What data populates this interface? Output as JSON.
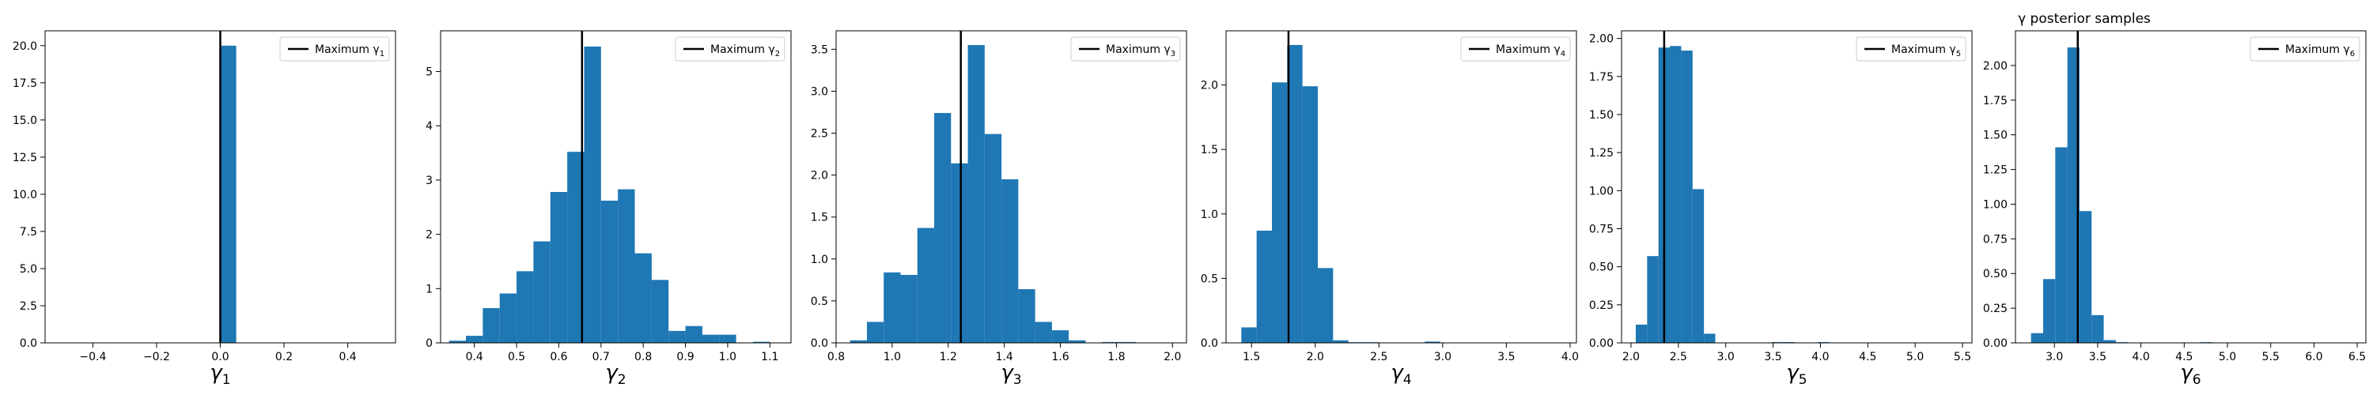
{
  "figure_title": "γ posterior samples",
  "chart_data": [
    {
      "type": "histogram",
      "symbol": "γ",
      "index": "1",
      "legend_text": "Maximum γ",
      "legend_placement": "upper-right",
      "max_line": 0.0,
      "xlim": [
        -0.55,
        0.55
      ],
      "ylim": [
        0,
        21
      ],
      "xticks": [
        -0.4,
        -0.2,
        0.0,
        0.2,
        0.4
      ],
      "xtick_labels": [
        "−0.4",
        "−0.2",
        "0.0",
        "0.2",
        "0.4"
      ],
      "yticks": [
        0,
        2.5,
        5,
        7.5,
        10,
        12.5,
        15,
        17.5,
        20
      ],
      "ytick_labels": [
        "0.0",
        "2.5",
        "5.0",
        "7.5",
        "10.0",
        "12.5",
        "15.0",
        "17.5",
        "20.0"
      ],
      "bins": [
        [
          0.0,
          0.05,
          20.0
        ]
      ]
    },
    {
      "type": "histogram",
      "symbol": "γ",
      "index": "2",
      "legend_text": "Maximum γ",
      "legend_placement": "upper-right",
      "max_line": 0.655,
      "xlim": [
        0.32,
        1.15
      ],
      "ylim": [
        0,
        5.75
      ],
      "xticks": [
        0.4,
        0.5,
        0.6,
        0.7,
        0.8,
        0.9,
        1.0,
        1.1
      ],
      "xtick_labels": [
        "0.4",
        "0.5",
        "0.6",
        "0.7",
        "0.8",
        "0.9",
        "1.0",
        "1.1"
      ],
      "yticks": [
        0,
        1,
        2,
        3,
        4,
        5
      ],
      "ytick_labels": [
        "0",
        "1",
        "2",
        "3",
        "4",
        "5"
      ],
      "bins": [
        [
          0.34,
          0.38,
          0.04
        ],
        [
          0.38,
          0.42,
          0.13
        ],
        [
          0.42,
          0.46,
          0.64
        ],
        [
          0.46,
          0.5,
          0.91
        ],
        [
          0.5,
          0.54,
          1.32
        ],
        [
          0.54,
          0.58,
          1.87
        ],
        [
          0.58,
          0.62,
          2.78
        ],
        [
          0.62,
          0.66,
          3.52
        ],
        [
          0.66,
          0.7,
          5.46
        ],
        [
          0.7,
          0.74,
          2.62
        ],
        [
          0.74,
          0.78,
          2.83
        ],
        [
          0.78,
          0.82,
          1.65
        ],
        [
          0.82,
          0.86,
          1.16
        ],
        [
          0.86,
          0.9,
          0.22
        ],
        [
          0.9,
          0.94,
          0.31
        ],
        [
          0.94,
          0.98,
          0.15
        ],
        [
          0.98,
          1.02,
          0.15
        ],
        [
          1.02,
          1.06,
          0.0
        ],
        [
          1.06,
          1.1,
          0.02
        ]
      ]
    },
    {
      "type": "histogram",
      "symbol": "γ",
      "index": "3",
      "legend_text": "Maximum γ",
      "legend_placement": "upper-right",
      "max_line": 1.245,
      "xlim": [
        0.8,
        2.05
      ],
      "ylim": [
        0,
        3.72
      ],
      "xticks": [
        0.8,
        1.0,
        1.2,
        1.4,
        1.6,
        1.8,
        2.0
      ],
      "xtick_labels": [
        "0.8",
        "1.0",
        "1.2",
        "1.4",
        "1.6",
        "1.8",
        "2.0"
      ],
      "yticks": [
        0,
        0.5,
        1.0,
        1.5,
        2.0,
        2.5,
        3.0,
        3.5
      ],
      "ytick_labels": [
        "0.0",
        "0.5",
        "1.0",
        "1.5",
        "2.0",
        "2.5",
        "3.0",
        "3.5"
      ],
      "bins": [
        [
          0.85,
          0.91,
          0.03
        ],
        [
          0.91,
          0.97,
          0.25
        ],
        [
          0.97,
          1.03,
          0.84
        ],
        [
          1.03,
          1.09,
          0.81
        ],
        [
          1.09,
          1.15,
          1.37
        ],
        [
          1.15,
          1.21,
          2.74
        ],
        [
          1.21,
          1.27,
          2.14
        ],
        [
          1.27,
          1.33,
          3.55
        ],
        [
          1.33,
          1.39,
          2.49
        ],
        [
          1.39,
          1.45,
          1.95
        ],
        [
          1.45,
          1.51,
          0.64
        ],
        [
          1.51,
          1.57,
          0.25
        ],
        [
          1.57,
          1.63,
          0.15
        ],
        [
          1.63,
          1.69,
          0.03
        ],
        [
          1.69,
          1.75,
          0.0
        ],
        [
          1.75,
          1.81,
          0.01
        ],
        [
          1.81,
          1.87,
          0.01
        ]
      ]
    },
    {
      "type": "histogram",
      "symbol": "γ",
      "index": "4",
      "legend_text": "Maximum γ",
      "legend_placement": "upper-right",
      "max_line": 1.79,
      "xlim": [
        1.3,
        4.05
      ],
      "ylim": [
        0,
        2.42
      ],
      "xticks": [
        1.5,
        2.0,
        2.5,
        3.0,
        3.5,
        4.0
      ],
      "xtick_labels": [
        "1.5",
        "2.0",
        "2.5",
        "3.0",
        "3.5",
        "4.0"
      ],
      "yticks": [
        0,
        0.5,
        1.0,
        1.5,
        2.0
      ],
      "ytick_labels": [
        "0.0",
        "0.5",
        "1.0",
        "1.5",
        "2.0"
      ],
      "bins": [
        [
          1.42,
          1.54,
          0.12
        ],
        [
          1.54,
          1.66,
          0.87
        ],
        [
          1.66,
          1.78,
          2.02
        ],
        [
          1.78,
          1.9,
          2.31
        ],
        [
          1.9,
          2.02,
          1.99
        ],
        [
          2.02,
          2.14,
          0.58
        ],
        [
          2.14,
          2.26,
          0.02
        ],
        [
          2.26,
          2.38,
          0.005
        ],
        [
          2.38,
          2.5,
          0.005
        ],
        [
          2.5,
          2.62,
          0.0
        ],
        [
          2.62,
          2.74,
          0.0
        ],
        [
          2.74,
          2.86,
          0.0
        ],
        [
          2.86,
          2.98,
          0.01
        ]
      ]
    },
    {
      "type": "histogram",
      "symbol": "γ",
      "index": "5",
      "legend_text": "Maximum γ",
      "legend_placement": "upper-right",
      "max_line": 2.35,
      "xlim": [
        1.9,
        5.6
      ],
      "ylim": [
        0,
        2.05
      ],
      "xticks": [
        2.0,
        2.5,
        3.0,
        3.5,
        4.0,
        4.5,
        5.0,
        5.5
      ],
      "xtick_labels": [
        "2.0",
        "2.5",
        "3.0",
        "3.5",
        "4.0",
        "4.5",
        "5.0",
        "5.5"
      ],
      "yticks": [
        0,
        0.25,
        0.5,
        0.75,
        1.0,
        1.25,
        1.5,
        1.75,
        2.0
      ],
      "ytick_labels": [
        "0.00",
        "0.25",
        "0.50",
        "0.75",
        "1.00",
        "1.25",
        "1.50",
        "1.75",
        "2.00"
      ],
      "bins": [
        [
          2.05,
          2.17,
          0.12
        ],
        [
          2.17,
          2.29,
          0.57
        ],
        [
          2.29,
          2.41,
          1.94
        ],
        [
          2.41,
          2.53,
          1.95
        ],
        [
          2.53,
          2.65,
          1.92
        ],
        [
          2.65,
          2.77,
          1.01
        ],
        [
          2.77,
          2.89,
          0.06
        ],
        [
          2.89,
          3.01,
          0.0
        ],
        [
          3.01,
          3.13,
          0.0
        ],
        [
          3.13,
          3.25,
          0.0
        ],
        [
          3.25,
          3.37,
          0.0
        ],
        [
          3.37,
          3.49,
          0.0
        ],
        [
          3.49,
          3.61,
          0.005
        ],
        [
          3.61,
          3.73,
          0.005
        ],
        [
          3.73,
          3.85,
          0.0
        ],
        [
          3.85,
          3.97,
          0.0
        ],
        [
          3.97,
          4.09,
          0.005
        ]
      ]
    },
    {
      "type": "histogram",
      "symbol": "γ",
      "index": "6",
      "legend_text": "Maximum γ",
      "legend_placement": "upper-right",
      "max_line": 3.27,
      "xlim": [
        2.55,
        6.6
      ],
      "ylim": [
        0,
        2.25
      ],
      "xticks": [
        3.0,
        3.5,
        4.0,
        4.5,
        5.0,
        5.5,
        6.0,
        6.5
      ],
      "xtick_labels": [
        "3.0",
        "3.5",
        "4.0",
        "4.5",
        "5.0",
        "5.5",
        "6.0",
        "6.5"
      ],
      "yticks": [
        0,
        0.25,
        0.5,
        0.75,
        1.0,
        1.25,
        1.5,
        1.75,
        2.0
      ],
      "ytick_labels": [
        "0.00",
        "0.25",
        "0.50",
        "0.75",
        "1.00",
        "1.25",
        "1.50",
        "1.75",
        "2.00"
      ],
      "bins": [
        [
          2.73,
          2.87,
          0.07
        ],
        [
          2.87,
          3.01,
          0.46
        ],
        [
          3.01,
          3.15,
          1.41
        ],
        [
          3.15,
          3.29,
          2.13
        ],
        [
          3.29,
          3.43,
          0.95
        ],
        [
          3.43,
          3.57,
          0.2
        ],
        [
          3.57,
          3.71,
          0.02
        ],
        [
          3.71,
          3.85,
          0.005
        ],
        [
          3.85,
          3.99,
          0.0
        ],
        [
          3.99,
          4.13,
          0.0
        ],
        [
          4.13,
          4.27,
          0.0
        ],
        [
          4.27,
          4.41,
          0.0
        ],
        [
          4.41,
          4.55,
          0.0
        ],
        [
          4.55,
          4.69,
          0.0
        ],
        [
          4.69,
          4.83,
          0.005
        ]
      ]
    }
  ]
}
